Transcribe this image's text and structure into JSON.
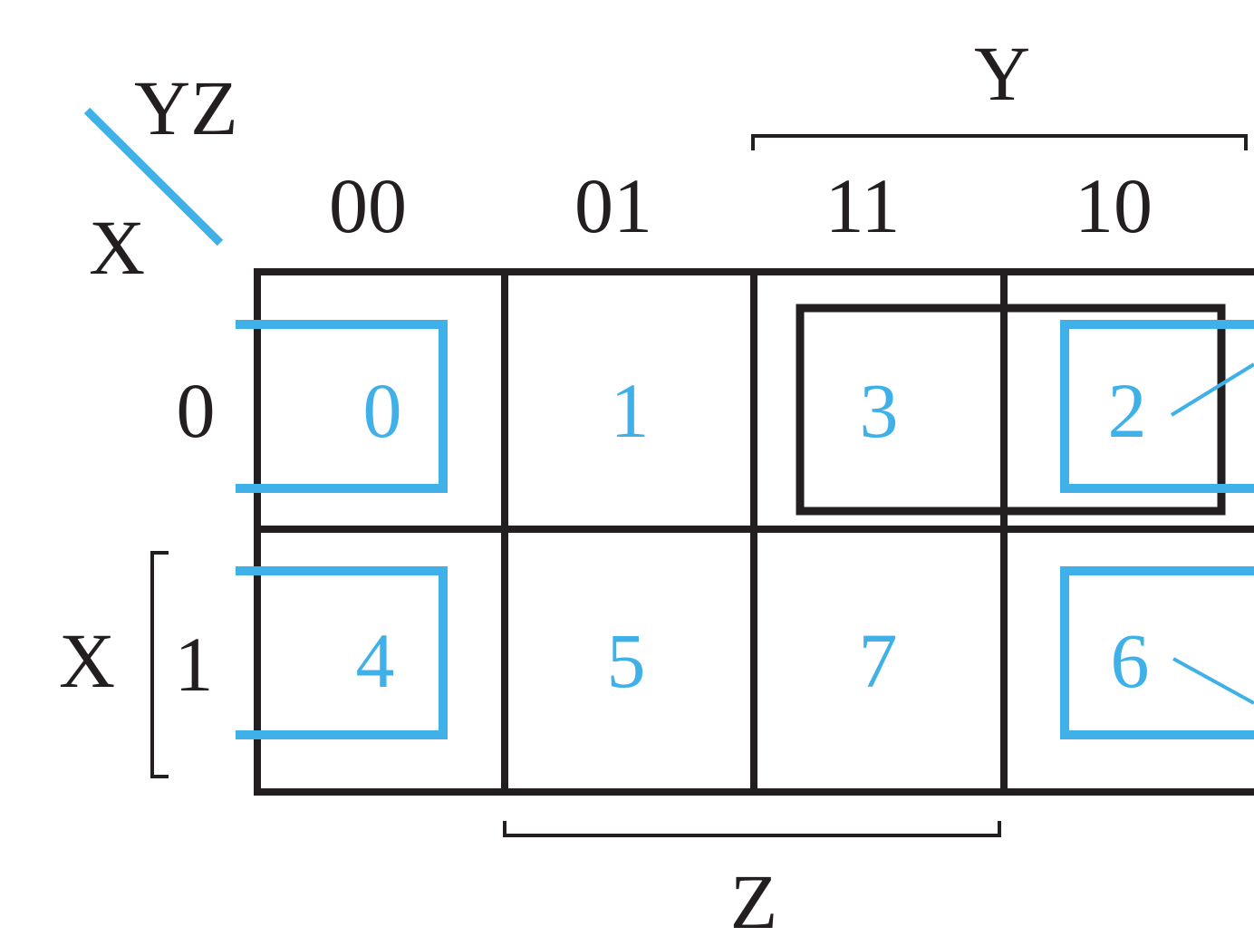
{
  "variables": {
    "corner_top": "YZ",
    "corner_bottom": "X",
    "y_label": "Y",
    "z_label": "Z",
    "x_label": "X"
  },
  "columns": [
    "00",
    "01",
    "11",
    "10"
  ],
  "rows": [
    "0",
    "1"
  ],
  "cells": [
    [
      "0",
      "1",
      "3",
      "2"
    ],
    [
      "4",
      "5",
      "7",
      "6"
    ]
  ],
  "colors": {
    "grid": "#231f20",
    "highlight": "#3fb0e8"
  }
}
